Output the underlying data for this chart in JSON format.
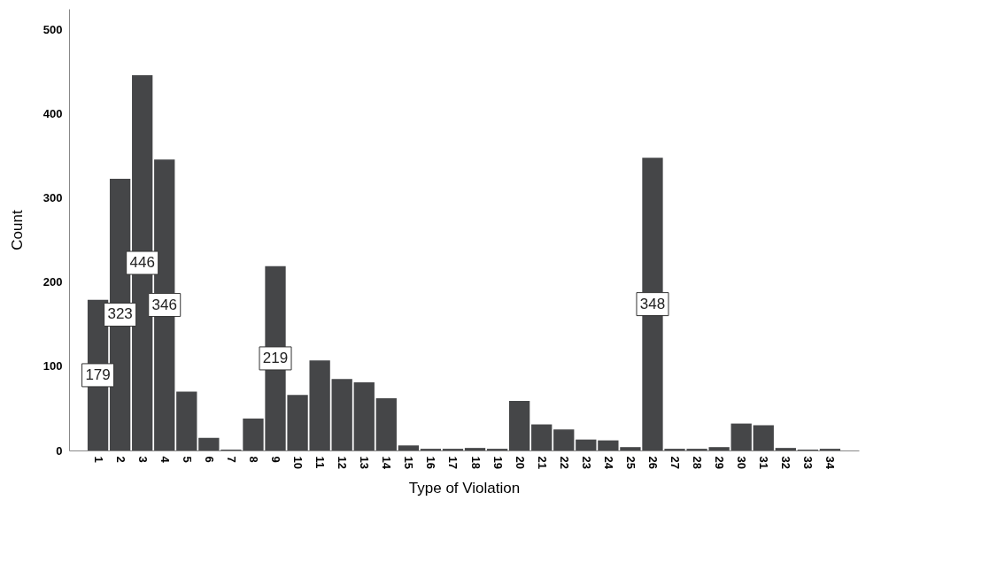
{
  "chart_data": {
    "type": "bar",
    "xlabel": "Type of Violation",
    "ylabel": "Count",
    "categories": [
      "1",
      "2",
      "3",
      "4",
      "5",
      "6",
      "7",
      "8",
      "9",
      "10",
      "11",
      "12",
      "13",
      "14",
      "15",
      "16",
      "17",
      "18",
      "19",
      "20",
      "21",
      "22",
      "23",
      "24",
      "25",
      "26",
      "27",
      "28",
      "29",
      "30",
      "31",
      "32",
      "33",
      "34"
    ],
    "values": [
      179,
      323,
      446,
      346,
      70,
      15,
      1,
      38,
      219,
      66,
      107,
      85,
      81,
      62,
      6,
      2,
      2,
      3,
      2,
      59,
      31,
      25,
      13,
      12,
      4,
      348,
      2,
      2,
      4,
      32,
      30,
      3,
      1,
      2
    ],
    "value_labels": [
      "179",
      "323",
      "446",
      "346",
      null,
      null,
      null,
      null,
      "219",
      null,
      null,
      null,
      null,
      null,
      null,
      null,
      null,
      null,
      null,
      null,
      null,
      null,
      null,
      null,
      null,
      "348",
      null,
      null,
      null,
      null,
      null,
      null,
      null,
      null
    ],
    "color": "#454648",
    "ylim": [
      0,
      525
    ],
    "yticks": [
      0,
      100,
      200,
      300,
      400,
      500
    ],
    "grid": false
  }
}
